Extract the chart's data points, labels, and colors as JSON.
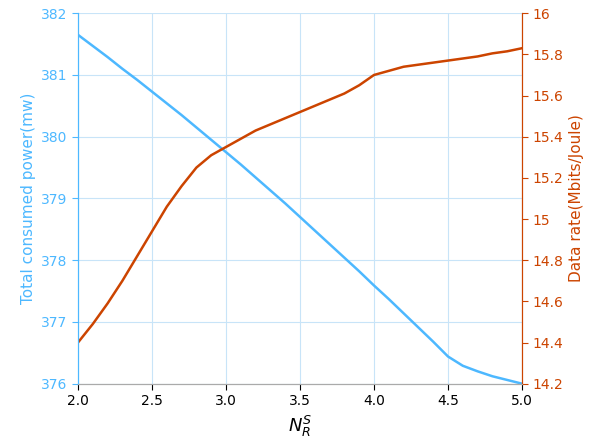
{
  "x": [
    2.0,
    2.1,
    2.2,
    2.3,
    2.4,
    2.5,
    2.6,
    2.7,
    2.8,
    2.9,
    3.0,
    3.1,
    3.2,
    3.3,
    3.4,
    3.5,
    3.6,
    3.7,
    3.8,
    3.9,
    4.0,
    4.1,
    4.2,
    4.3,
    4.4,
    4.5,
    4.6,
    4.7,
    4.8,
    4.9,
    5.0
  ],
  "blue_y": [
    381.65,
    381.47,
    381.29,
    381.1,
    380.92,
    380.73,
    380.54,
    380.35,
    380.15,
    379.95,
    379.75,
    379.55,
    379.34,
    379.13,
    378.92,
    378.7,
    378.48,
    378.26,
    378.04,
    377.82,
    377.59,
    377.37,
    377.14,
    376.91,
    376.68,
    376.44,
    376.29,
    376.2,
    376.12,
    376.06,
    376.0
  ],
  "orange_y": [
    14.4,
    14.49,
    14.59,
    14.7,
    14.82,
    14.94,
    15.06,
    15.16,
    15.25,
    15.31,
    15.35,
    15.39,
    15.43,
    15.46,
    15.49,
    15.52,
    15.55,
    15.58,
    15.61,
    15.65,
    15.7,
    15.72,
    15.74,
    15.75,
    15.76,
    15.77,
    15.78,
    15.79,
    15.805,
    15.815,
    15.83
  ],
  "blue_color": "#4db8ff",
  "orange_color": "#cc4400",
  "left_ylabel": "Total consumed power(mw)",
  "right_ylabel": "Data rate(Mbits/Joule)",
  "xlabel": "$N_R^S$",
  "xlim": [
    2.0,
    5.0
  ],
  "left_ylim": [
    376.0,
    382.0
  ],
  "right_ylim": [
    14.2,
    16.0
  ],
  "left_yticks": [
    376,
    377,
    378,
    379,
    380,
    381,
    382
  ],
  "right_yticks": [
    14.2,
    14.4,
    14.6,
    14.8,
    15.0,
    15.2,
    15.4,
    15.6,
    15.8,
    16.0
  ],
  "xticks": [
    2.0,
    2.5,
    3.0,
    3.5,
    4.0,
    4.5,
    5.0
  ],
  "grid_color": "#c8e4f8",
  "background_color": "#ffffff",
  "left_label_color": "#4db8ff",
  "right_label_color": "#cc4400",
  "left_tick_color": "#4db8ff",
  "right_tick_color": "#cc4400",
  "xlabel_fontsize": 13,
  "ylabel_fontsize": 11,
  "tick_fontsize": 10,
  "linewidth": 1.8
}
